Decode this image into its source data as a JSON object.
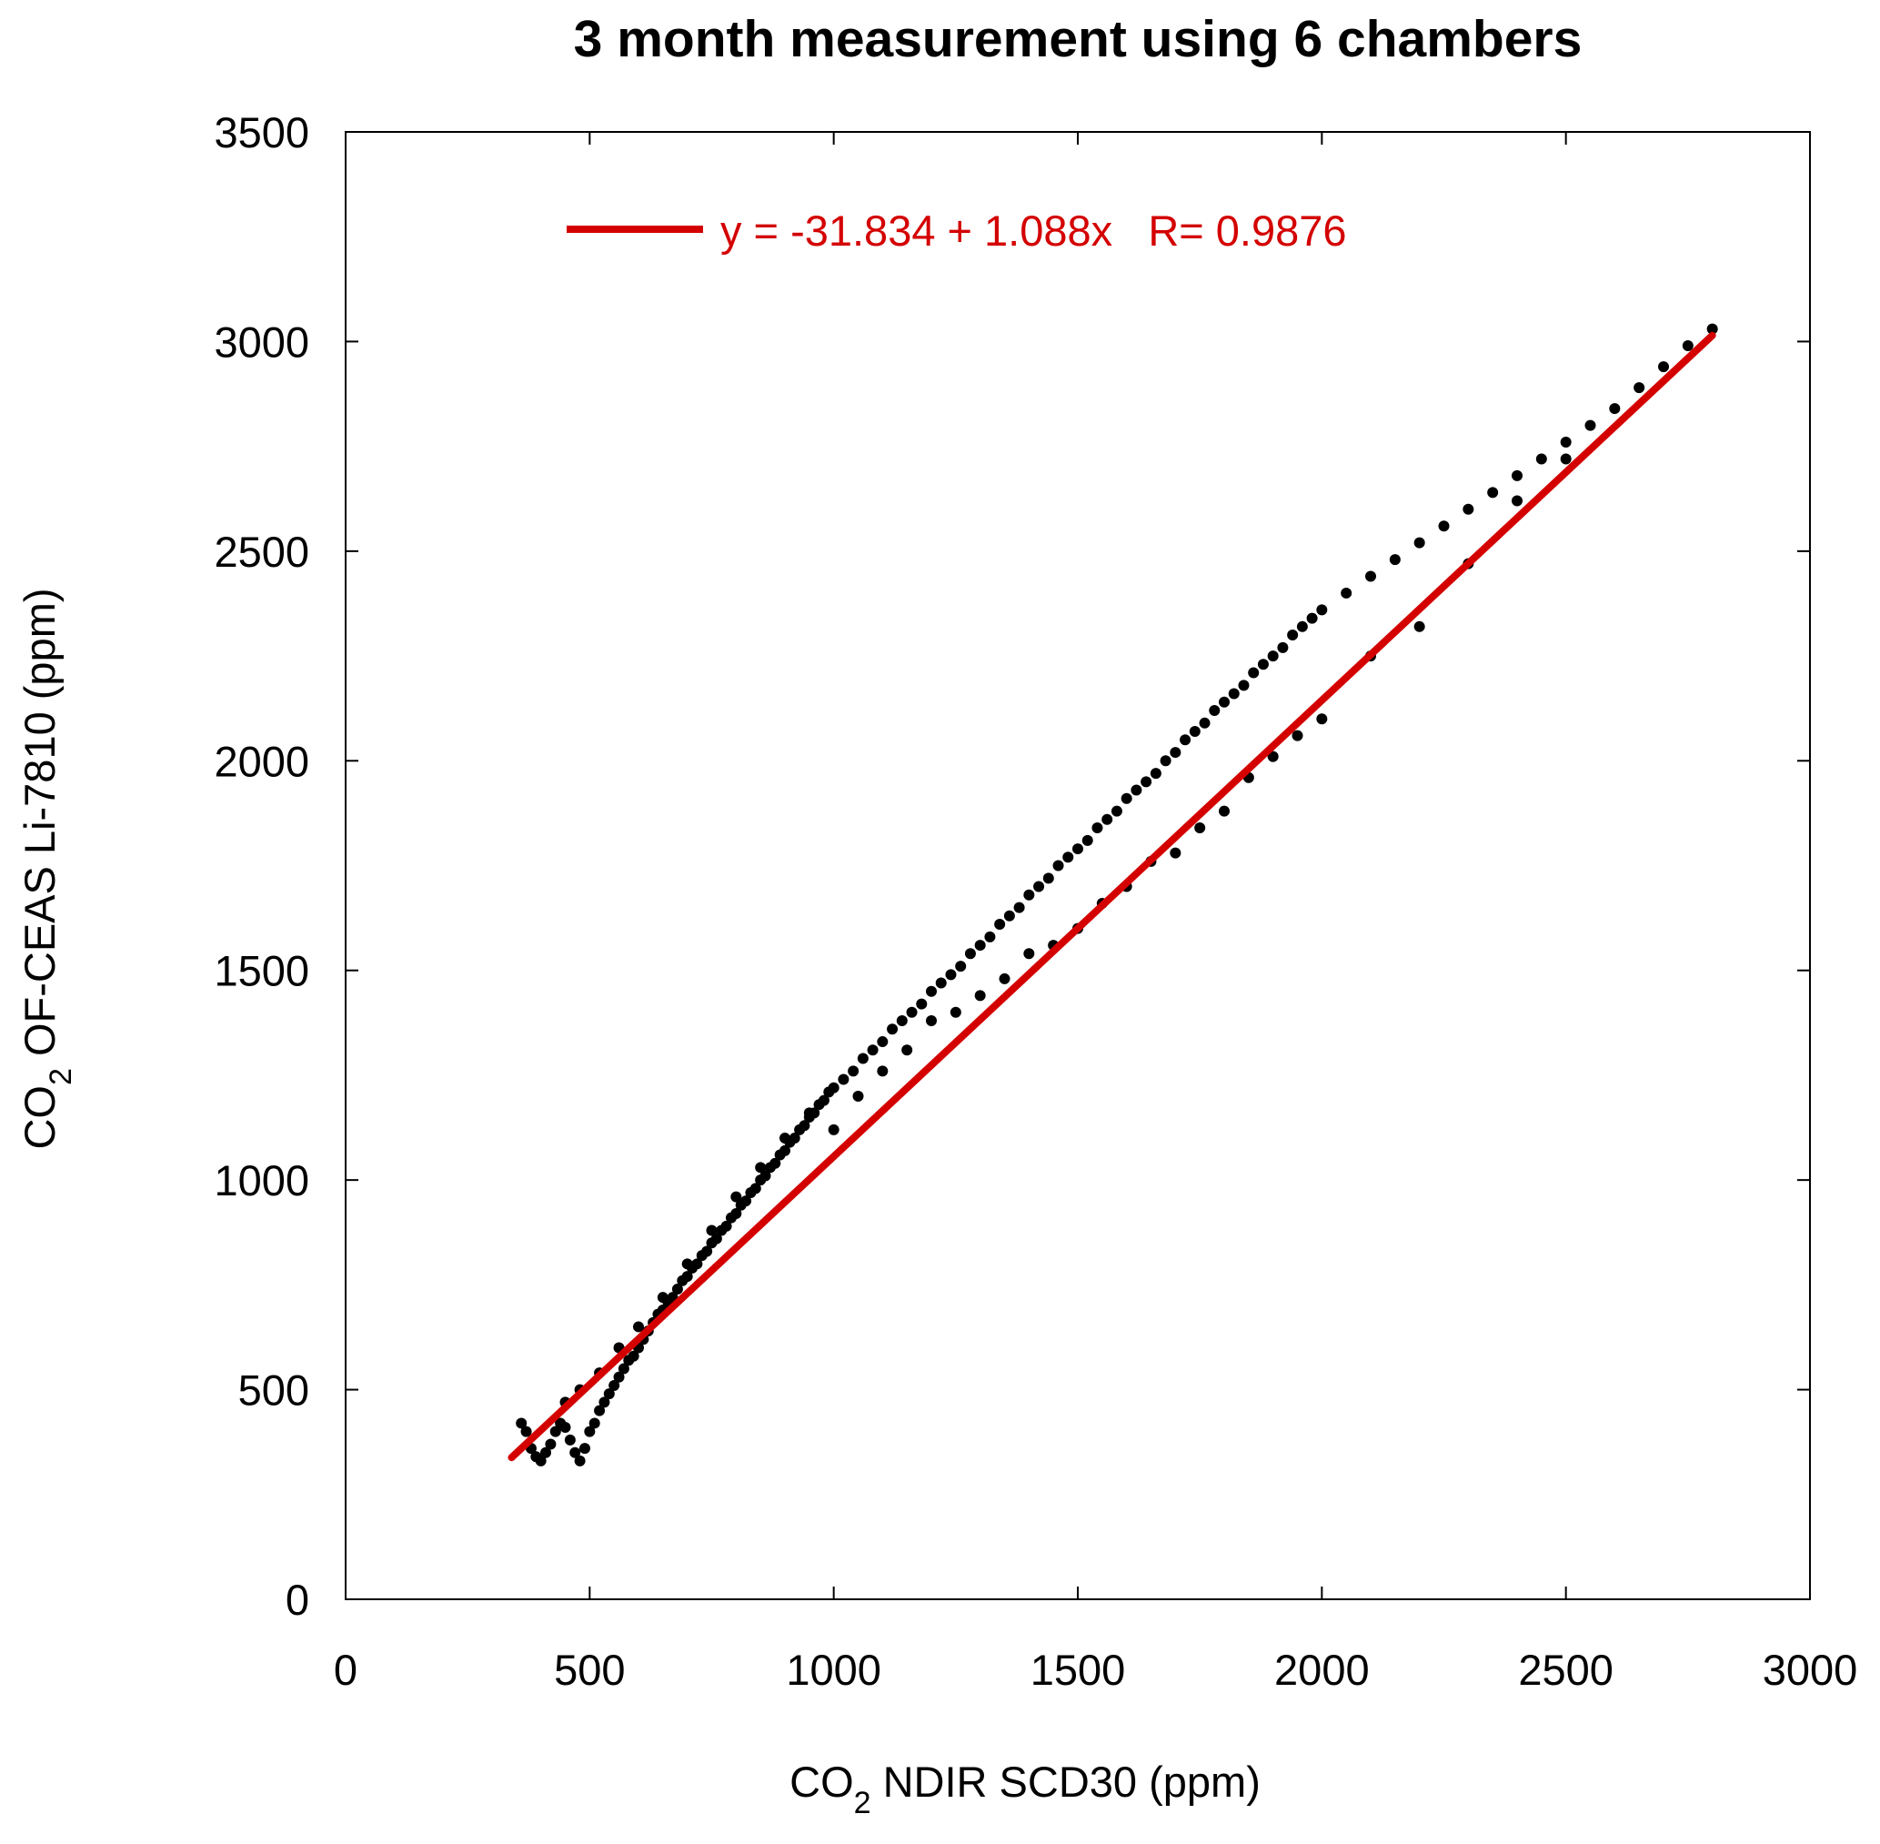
{
  "chart_data": {
    "type": "scatter",
    "title": "3 month measurement using 6 chambers",
    "xlabel": {
      "main": "CO",
      "sub": "2",
      "rest": " NDIR SCD30 (ppm)"
    },
    "ylabel": {
      "main": "CO",
      "sub": "2",
      "rest": " OF-CEAS Li-7810 (ppm)"
    },
    "xlim": [
      0,
      3000
    ],
    "ylim": [
      0,
      3500
    ],
    "xticks": [
      0,
      500,
      1000,
      1500,
      2000,
      2500,
      3000
    ],
    "yticks": [
      0,
      500,
      1000,
      1500,
      2000,
      2500,
      3000,
      3500
    ],
    "xtick_labels": [
      "0",
      "500",
      "1000",
      "1500",
      "2000",
      "2500",
      "3000"
    ],
    "ytick_labels": [
      "0",
      "500",
      "1000",
      "1500",
      "2000",
      "2500",
      "3000",
      "3500"
    ],
    "grid": false,
    "legend": {
      "placement": "top-left",
      "label": "y = -31.834 + 1.088x   R= 0.9876"
    },
    "fit": {
      "intercept": -31.834,
      "slope": 1.088,
      "r": 0.9876,
      "x_range": [
        340,
        2800
      ],
      "color": "#d40000"
    },
    "series": [
      {
        "marker_color": "#000000",
        "points": [
          [
            360,
            420
          ],
          [
            370,
            400
          ],
          [
            380,
            360
          ],
          [
            390,
            340
          ],
          [
            400,
            330
          ],
          [
            410,
            350
          ],
          [
            420,
            370
          ],
          [
            430,
            400
          ],
          [
            440,
            420
          ],
          [
            450,
            410
          ],
          [
            460,
            380
          ],
          [
            470,
            350
          ],
          [
            480,
            330
          ],
          [
            490,
            360
          ],
          [
            500,
            400
          ],
          [
            510,
            420
          ],
          [
            520,
            450
          ],
          [
            530,
            470
          ],
          [
            540,
            490
          ],
          [
            550,
            510
          ],
          [
            560,
            530
          ],
          [
            570,
            550
          ],
          [
            580,
            570
          ],
          [
            590,
            580
          ],
          [
            600,
            600
          ],
          [
            610,
            620
          ],
          [
            620,
            640
          ],
          [
            630,
            660
          ],
          [
            640,
            680
          ],
          [
            650,
            690
          ],
          [
            660,
            710
          ],
          [
            670,
            720
          ],
          [
            680,
            740
          ],
          [
            690,
            760
          ],
          [
            700,
            770
          ],
          [
            710,
            790
          ],
          [
            720,
            800
          ],
          [
            730,
            820
          ],
          [
            740,
            830
          ],
          [
            750,
            850
          ],
          [
            760,
            860
          ],
          [
            770,
            880
          ],
          [
            780,
            890
          ],
          [
            790,
            910
          ],
          [
            800,
            920
          ],
          [
            810,
            940
          ],
          [
            820,
            950
          ],
          [
            830,
            970
          ],
          [
            840,
            980
          ],
          [
            850,
            1000
          ],
          [
            860,
            1010
          ],
          [
            870,
            1030
          ],
          [
            880,
            1040
          ],
          [
            890,
            1060
          ],
          [
            900,
            1070
          ],
          [
            910,
            1090
          ],
          [
            920,
            1100
          ],
          [
            930,
            1120
          ],
          [
            940,
            1130
          ],
          [
            950,
            1150
          ],
          [
            960,
            1160
          ],
          [
            970,
            1180
          ],
          [
            980,
            1190
          ],
          [
            990,
            1210
          ],
          [
            1000,
            1220
          ],
          [
            1020,
            1240
          ],
          [
            1040,
            1260
          ],
          [
            1060,
            1290
          ],
          [
            1080,
            1310
          ],
          [
            1100,
            1330
          ],
          [
            1120,
            1360
          ],
          [
            1140,
            1380
          ],
          [
            1160,
            1400
          ],
          [
            1180,
            1420
          ],
          [
            1200,
            1450
          ],
          [
            1220,
            1470
          ],
          [
            1240,
            1490
          ],
          [
            1260,
            1510
          ],
          [
            1280,
            1540
          ],
          [
            1300,
            1560
          ],
          [
            1320,
            1580
          ],
          [
            1340,
            1610
          ],
          [
            1360,
            1630
          ],
          [
            1380,
            1650
          ],
          [
            1400,
            1680
          ],
          [
            1420,
            1700
          ],
          [
            1440,
            1720
          ],
          [
            1460,
            1750
          ],
          [
            1480,
            1770
          ],
          [
            1500,
            1790
          ],
          [
            1520,
            1810
          ],
          [
            1540,
            1840
          ],
          [
            1560,
            1860
          ],
          [
            1580,
            1880
          ],
          [
            1600,
            1910
          ],
          [
            1620,
            1930
          ],
          [
            1640,
            1950
          ],
          [
            1660,
            1970
          ],
          [
            1680,
            2000
          ],
          [
            1700,
            2020
          ],
          [
            1720,
            2050
          ],
          [
            1740,
            2070
          ],
          [
            1760,
            2090
          ],
          [
            1780,
            2120
          ],
          [
            1800,
            2140
          ],
          [
            1820,
            2160
          ],
          [
            1840,
            2180
          ],
          [
            1860,
            2210
          ],
          [
            1880,
            2230
          ],
          [
            1900,
            2250
          ],
          [
            1920,
            2270
          ],
          [
            1940,
            2300
          ],
          [
            1960,
            2320
          ],
          [
            1980,
            2340
          ],
          [
            2000,
            2360
          ],
          [
            2050,
            2400
          ],
          [
            2100,
            2440
          ],
          [
            2150,
            2480
          ],
          [
            2200,
            2520
          ],
          [
            2250,
            2560
          ],
          [
            2300,
            2600
          ],
          [
            2350,
            2640
          ],
          [
            2400,
            2680
          ],
          [
            2450,
            2720
          ],
          [
            2500,
            2760
          ],
          [
            2550,
            2800
          ],
          [
            2600,
            2840
          ],
          [
            2650,
            2890
          ],
          [
            2700,
            2940
          ],
          [
            2750,
            2990
          ],
          [
            2800,
            3030
          ],
          [
            450,
            470
          ],
          [
            480,
            500
          ],
          [
            520,
            540
          ],
          [
            560,
            600
          ],
          [
            600,
            650
          ],
          [
            650,
            720
          ],
          [
            700,
            800
          ],
          [
            750,
            880
          ],
          [
            800,
            960
          ],
          [
            850,
            1030
          ],
          [
            900,
            1100
          ],
          [
            950,
            1160
          ],
          [
            1000,
            1120
          ],
          [
            1050,
            1200
          ],
          [
            1100,
            1260
          ],
          [
            1150,
            1310
          ],
          [
            1200,
            1380
          ],
          [
            1250,
            1400
          ],
          [
            1300,
            1440
          ],
          [
            1350,
            1480
          ],
          [
            1400,
            1540
          ],
          [
            1450,
            1560
          ],
          [
            1500,
            1600
          ],
          [
            1550,
            1660
          ],
          [
            1600,
            1700
          ],
          [
            1650,
            1760
          ],
          [
            1700,
            1780
          ],
          [
            1750,
            1840
          ],
          [
            1800,
            1880
          ],
          [
            1850,
            1960
          ],
          [
            1900,
            2010
          ],
          [
            1950,
            2060
          ],
          [
            2000,
            2100
          ],
          [
            2100,
            2250
          ],
          [
            2200,
            2320
          ],
          [
            2300,
            2470
          ],
          [
            2400,
            2620
          ],
          [
            2500,
            2720
          ]
        ]
      }
    ]
  }
}
